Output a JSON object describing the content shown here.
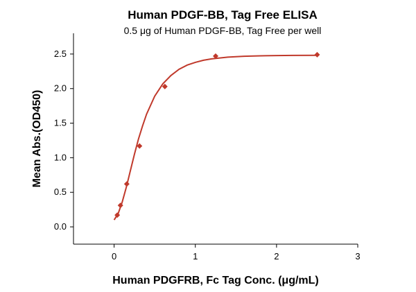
{
  "chart_data": {
    "type": "scatter",
    "title": "Human PDGF-BB, Tag Free ELISA",
    "subtitle": "0.5 μg of Human PDGF-BB, Tag Free per well",
    "xlabel": "Human PDGFRB, Fc Tag Conc. (μg/mL)",
    "ylabel": "Mean Abs.(OD450)",
    "xlim": [
      -0.5,
      3
    ],
    "ylim": [
      -0.25,
      2.8
    ],
    "x_ticks": [
      0,
      1,
      2,
      3
    ],
    "x_tick_labels": [
      "0",
      "1",
      "2",
      "3"
    ],
    "y_ticks": [
      0.0,
      0.5,
      1.0,
      1.5,
      2.0,
      2.5
    ],
    "y_tick_labels": [
      "0.0",
      "0.5",
      "1.0",
      "1.5",
      "2.0",
      "2.5"
    ],
    "grid": false,
    "series": [
      {
        "marker": "diamond",
        "color": "#c0392b",
        "x": [
          0.039,
          0.078,
          0.156,
          0.313,
          0.625,
          1.25,
          2.5
        ],
        "y": [
          0.17,
          0.31,
          0.62,
          1.17,
          2.03,
          2.47,
          2.49
        ]
      }
    ],
    "fit_curve": {
      "color": "#c0392b",
      "x": [
        0.0,
        0.05,
        0.1,
        0.15,
        0.2,
        0.25,
        0.3,
        0.35,
        0.4,
        0.5,
        0.6,
        0.7,
        0.8,
        0.9,
        1.0,
        1.1,
        1.2,
        1.4,
        1.6,
        1.8,
        2.0,
        2.2,
        2.5
      ],
      "y": [
        0.1,
        0.19,
        0.36,
        0.57,
        0.81,
        1.05,
        1.27,
        1.46,
        1.63,
        1.89,
        2.07,
        2.19,
        2.28,
        2.34,
        2.38,
        2.41,
        2.43,
        2.455,
        2.468,
        2.474,
        2.478,
        2.48,
        2.482
      ]
    }
  }
}
